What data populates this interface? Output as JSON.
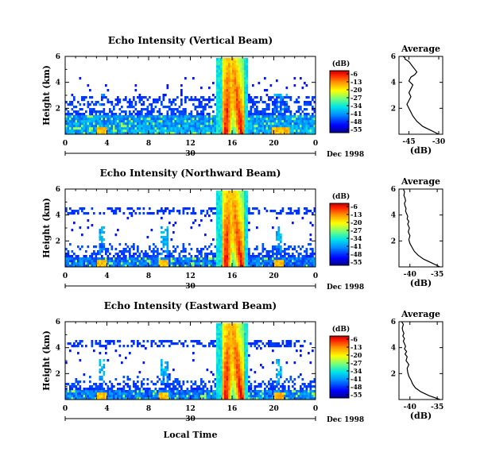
{
  "chart_data": [
    {
      "type": "heatmap",
      "title": "Echo Intensity (Vertical Beam)",
      "ylabel": "Height (km)",
      "yticks": [
        "2",
        "4",
        "6"
      ],
      "ylim": [
        0,
        6
      ],
      "xticks": [
        "0",
        "4",
        "8",
        "12",
        "16",
        "20",
        "0"
      ],
      "xlim": [
        0,
        24
      ],
      "day_label": "30",
      "date_label": "Dec 1998",
      "colorbar": {
        "unit": "(dB)",
        "ticks": [
          "-6",
          "-13",
          "-20",
          "-27",
          "-34",
          "-41",
          "-48",
          "-55"
        ]
      },
      "features": {
        "tower_hours": [
          14.5,
          17.5
        ],
        "tower_peak_db": -6,
        "low_layer_top_km": 1.5,
        "low_layer_db": -44,
        "upper_layer_km": [
          2.2,
          3.0
        ],
        "spike_hours": [
          3.5,
          20.3,
          21.0
        ]
      }
    },
    {
      "type": "line",
      "title": "Average",
      "xlabel": "(dB)",
      "xticks": [
        "-45",
        "-30"
      ],
      "xlim": [
        -50,
        -28
      ],
      "yticks": [
        "2",
        "4",
        "6"
      ],
      "ylim": [
        0,
        6
      ],
      "series": [
        {
          "x": [
            -30,
            -34,
            -38,
            -41,
            -43,
            -44,
            -45,
            -46,
            -45,
            -44,
            -45,
            -44,
            -43,
            -45,
            -44,
            -42,
            -41,
            -42,
            -43,
            -44,
            -45,
            -46,
            -47,
            -47,
            -48
          ],
          "y": [
            0.0,
            0.3,
            0.6,
            1.0,
            1.4,
            1.7,
            2.0,
            2.3,
            2.6,
            2.9,
            3.2,
            3.5,
            3.8,
            4.1,
            4.4,
            4.6,
            4.8,
            5.0,
            5.2,
            5.4,
            5.6,
            5.7,
            5.8,
            5.9,
            6.0
          ]
        }
      ]
    },
    {
      "type": "heatmap",
      "title": "Echo Intensity (Northward Beam)",
      "ylabel": "Height (km)",
      "yticks": [
        "2",
        "4",
        "6"
      ],
      "ylim": [
        0,
        6
      ],
      "xticks": [
        "0",
        "4",
        "8",
        "12",
        "16",
        "20",
        "0"
      ],
      "xlim": [
        0,
        24
      ],
      "day_label": "30",
      "date_label": "Dec 1998",
      "colorbar": {
        "unit": "(dB)",
        "ticks": [
          "-6",
          "-13",
          "-20",
          "-27",
          "-34",
          "-41",
          "-48",
          "-55"
        ]
      },
      "features": {
        "tower_hours": [
          14.5,
          17.5
        ],
        "tower_peak_db": -6,
        "low_layer_top_km": 0.8,
        "low_layer_db": -48,
        "upper_layer_km": [
          4.0,
          4.5
        ],
        "spike_hours": [
          3.5,
          9.5,
          20.5
        ]
      }
    },
    {
      "type": "line",
      "title": "Average",
      "xlabel": "(dB)",
      "xticks": [
        "-40",
        "-35"
      ],
      "xlim": [
        -42,
        -34
      ],
      "yticks": [
        "2",
        "4",
        "6"
      ],
      "ylim": [
        0,
        6
      ],
      "series": [
        {
          "x": [
            -34.5,
            -36,
            -37.5,
            -38.5,
            -39.2,
            -39.6,
            -40.0,
            -40.2,
            -40.0,
            -40.3,
            -40.1,
            -40.4,
            -40.2,
            -40.5,
            -40.4,
            -40.6,
            -40.8,
            -40.7,
            -40.9,
            -41.0,
            -40.8,
            -40.9,
            -41.1,
            -41.0,
            -41.2
          ],
          "y": [
            0.0,
            0.3,
            0.6,
            0.9,
            1.2,
            1.5,
            1.8,
            2.1,
            2.4,
            2.7,
            3.0,
            3.3,
            3.5,
            3.7,
            3.9,
            4.1,
            4.3,
            4.5,
            4.7,
            4.9,
            5.1,
            5.3,
            5.5,
            5.8,
            6.0
          ]
        }
      ]
    },
    {
      "type": "heatmap",
      "title": "Echo Intensity (Eastward Beam)",
      "ylabel": "Height (km)",
      "yticks": [
        "2",
        "4",
        "6"
      ],
      "ylim": [
        0,
        6
      ],
      "xticks": [
        "0",
        "4",
        "8",
        "12",
        "16",
        "20",
        "0"
      ],
      "xlim": [
        0,
        24
      ],
      "day_label": "30",
      "date_label": "Dec 1998",
      "xlabel": "Local Time",
      "colorbar": {
        "unit": "(dB)",
        "ticks": [
          "-6",
          "-13",
          "-20",
          "-27",
          "-34",
          "-41",
          "-48",
          "-55"
        ]
      },
      "features": {
        "tower_hours": [
          14.5,
          17.5
        ],
        "tower_peak_db": -6,
        "low_layer_top_km": 0.8,
        "low_layer_db": -47,
        "upper_layer_km": [
          4.0,
          4.6
        ],
        "spike_hours": [
          3.5,
          9.5,
          20.5
        ]
      }
    },
    {
      "type": "line",
      "title": "Average",
      "xlabel": "(dB)",
      "xticks": [
        "-40",
        "-35"
      ],
      "xlim": [
        -42,
        -34
      ],
      "yticks": [
        "2",
        "4",
        "6"
      ],
      "ylim": [
        0,
        6
      ],
      "series": [
        {
          "x": [
            -34.5,
            -36.5,
            -38,
            -39,
            -39.5,
            -39.8,
            -40.2,
            -40.4,
            -40.5,
            -40.2,
            -40.7,
            -40.5,
            -40.9,
            -40.6,
            -41.0,
            -40.8,
            -41.0,
            -41.2,
            -41.0,
            -41.3,
            -41.1,
            -41.3,
            -41.4,
            -41.2,
            -41.5
          ],
          "y": [
            0.0,
            0.3,
            0.6,
            0.9,
            1.2,
            1.5,
            1.8,
            2.1,
            2.4,
            2.7,
            3.0,
            3.3,
            3.5,
            3.7,
            3.9,
            4.1,
            4.3,
            4.5,
            4.7,
            4.9,
            5.1,
            5.3,
            5.5,
            5.8,
            6.0
          ]
        }
      ]
    }
  ]
}
